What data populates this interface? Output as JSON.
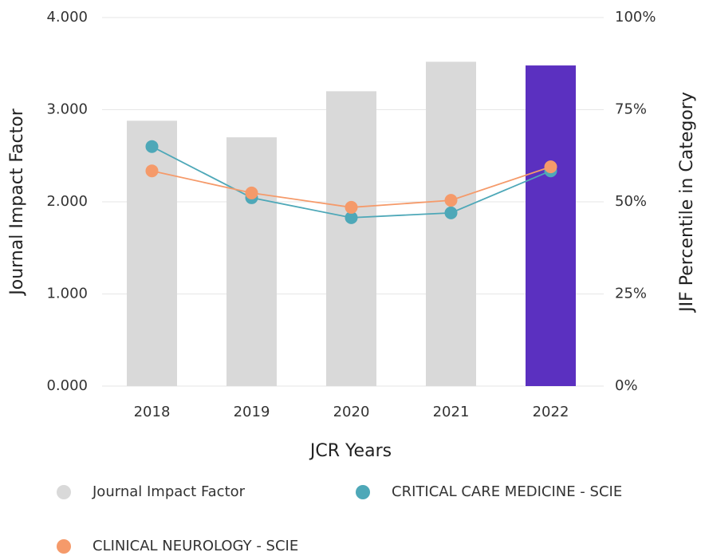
{
  "chart_data": {
    "type": "bar",
    "x_label": "JCR Years",
    "y_label": "Journal Impact Factor",
    "y2_label": "JIF Percentile in Category",
    "categories": [
      "2018",
      "2019",
      "2020",
      "2021",
      "2022"
    ],
    "series": [
      {
        "name": "Journal Impact Factor",
        "type": "bar",
        "color": "#d9d9d9",
        "colors": [
          "#d9d9d9",
          "#d9d9d9",
          "#d9d9d9",
          "#d9d9d9",
          "#5b30c0"
        ],
        "values": [
          2.88,
          2.7,
          3.2,
          3.52,
          3.48
        ]
      },
      {
        "name": "CRITICAL CARE MEDICINE - SCIE",
        "type": "line",
        "axis": "y2",
        "color": "#4ea8b8",
        "values": [
          65,
          51.1,
          45.7,
          47.0,
          58.4
        ]
      },
      {
        "name": "CLINICAL NEUROLOGY - SCIE",
        "type": "line",
        "axis": "y2",
        "color": "#f59a6a",
        "values": [
          58.4,
          52.4,
          48.5,
          50.4,
          59.5
        ]
      }
    ],
    "ylim": [
      0,
      4
    ],
    "yticks": [
      {
        "value": 0,
        "label": "0.000"
      },
      {
        "value": 1,
        "label": "1.000"
      },
      {
        "value": 2,
        "label": "2.000"
      },
      {
        "value": 3,
        "label": "3.000"
      },
      {
        "value": 4,
        "label": "4.000"
      }
    ],
    "y2lim": [
      0,
      100
    ],
    "y2ticks": [
      {
        "value": 0,
        "label": "0%"
      },
      {
        "value": 25,
        "label": "25%"
      },
      {
        "value": 50,
        "label": "50%"
      },
      {
        "value": 75,
        "label": "75%"
      },
      {
        "value": 100,
        "label": "100%"
      }
    ],
    "grid": true
  }
}
